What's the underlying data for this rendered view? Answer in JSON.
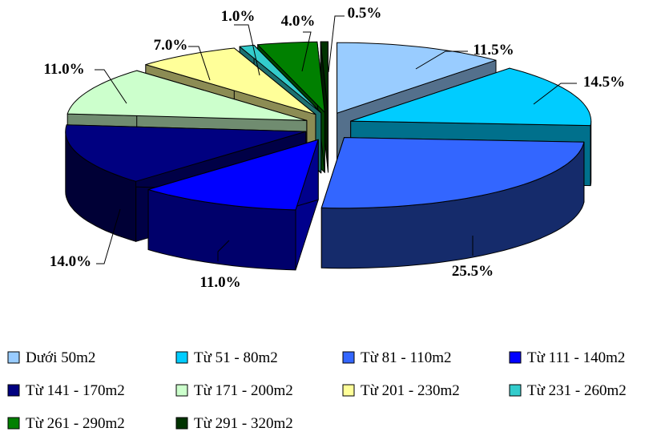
{
  "chart_data": {
    "type": "pie",
    "style": "3d-exploded",
    "title": "",
    "categories": [
      "Dưới 50m2",
      "Từ 51 - 80m2",
      "Từ 81 - 110m2",
      "Từ 111 - 140m2",
      "Từ 141 - 170m2",
      "Từ 171 - 200m2",
      "Từ 201 - 230m2",
      "Từ 231 - 260m2",
      "Từ 261 - 290m2",
      "Từ 291 - 320m2"
    ],
    "values": [
      11.5,
      14.5,
      25.5,
      11.0,
      14.0,
      11.0,
      7.0,
      1.0,
      4.0,
      0.5
    ],
    "labels": [
      "11.5%",
      "14.5%",
      "25.5%",
      "11.0%",
      "14.0%",
      "11.0%",
      "7.0%",
      "1.0%",
      "4.0%",
      "0.5%"
    ],
    "colors": [
      "#99ccff",
      "#00ccff",
      "#3366ff",
      "#0000ff",
      "#000080",
      "#ccffcc",
      "#ffff99",
      "#33cccc",
      "#008000",
      "#003300"
    ],
    "legend_position": "bottom"
  }
}
